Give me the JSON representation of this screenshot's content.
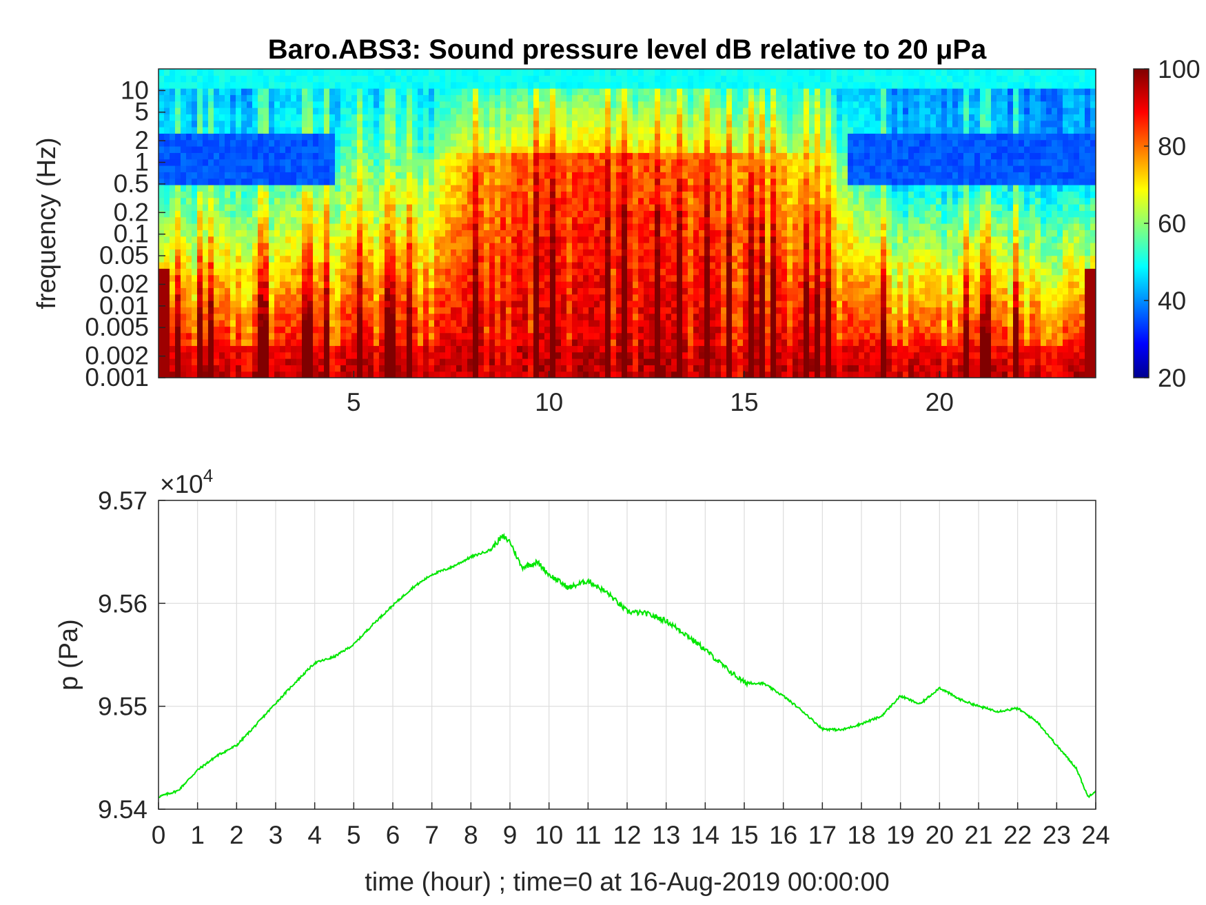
{
  "chart_data": [
    {
      "type": "heatmap",
      "title": "Baro.ABS3: Sound pressure level dB relative to 20 μPa",
      "ylabel": "frequency (Hz)",
      "yscale": "log",
      "xlim": [
        0,
        24
      ],
      "ylim": [
        0.001,
        20
      ],
      "xticks": [
        "5",
        "10",
        "15",
        "20"
      ],
      "yticks": [
        "0.001",
        "0.002",
        "0.005",
        "0.01",
        "0.02",
        "0.05",
        "0.1",
        "0.2",
        "0.5",
        "1",
        "2",
        "5",
        "10"
      ],
      "colorbar": {
        "min": 20,
        "max": 100,
        "ticks": [
          "20",
          "40",
          "60",
          "80",
          "100"
        ],
        "colormap": "jet"
      },
      "activity_profile": [
        {
          "x": 0,
          "level": 0.25
        },
        {
          "x": 1,
          "level": 0.3
        },
        {
          "x": 2,
          "level": 0.35
        },
        {
          "x": 3,
          "level": 0.35
        },
        {
          "x": 4,
          "level": 0.4
        },
        {
          "x": 5,
          "level": 0.5
        },
        {
          "x": 6,
          "level": 0.45
        },
        {
          "x": 7,
          "level": 0.55
        },
        {
          "x": 8,
          "level": 0.85
        },
        {
          "x": 9,
          "level": 0.95
        },
        {
          "x": 10,
          "level": 1.0
        },
        {
          "x": 11,
          "level": 1.0
        },
        {
          "x": 12,
          "level": 1.0
        },
        {
          "x": 13,
          "level": 0.95
        },
        {
          "x": 14,
          "level": 0.95
        },
        {
          "x": 15,
          "level": 0.9
        },
        {
          "x": 16,
          "level": 0.8
        },
        {
          "x": 17,
          "level": 0.7
        },
        {
          "x": 17.8,
          "level": 0.4
        },
        {
          "x": 19,
          "level": 0.2
        },
        {
          "x": 20,
          "level": 0.2
        },
        {
          "x": 21,
          "level": 0.22
        },
        {
          "x": 22,
          "level": 0.2
        },
        {
          "x": 23,
          "level": 0.2
        },
        {
          "x": 24,
          "level": 0.2
        }
      ]
    },
    {
      "type": "line",
      "ylabel": "p (Pa)",
      "xlabel": "time (hour) ; time=0 at 16-Aug-2019 00:00:00",
      "xlim": [
        0,
        24
      ],
      "ylim": [
        95400,
        95700
      ],
      "exponent_label": "×10",
      "exponent_power": "4",
      "xticks": [
        "0",
        "1",
        "2",
        "3",
        "4",
        "5",
        "6",
        "7",
        "8",
        "9",
        "10",
        "11",
        "12",
        "13",
        "14",
        "15",
        "16",
        "17",
        "18",
        "19",
        "20",
        "21",
        "22",
        "23",
        "24"
      ],
      "yticks": [
        "9.54",
        "9.55",
        "9.56",
        "9.57"
      ],
      "grid": true,
      "color": "#00e600",
      "x": [
        0,
        0.5,
        1,
        1.5,
        2,
        2.5,
        3,
        3.5,
        4,
        4.5,
        5,
        5.5,
        6,
        6.5,
        7,
        7.5,
        8,
        8.5,
        8.8,
        9,
        9.3,
        9.7,
        10,
        10.5,
        11,
        11.5,
        12,
        12.5,
        13,
        13.5,
        14,
        14.5,
        15,
        15.5,
        16,
        16.5,
        17,
        17.5,
        18,
        18.5,
        19,
        19.5,
        20,
        20.5,
        21,
        21.5,
        22,
        22.5,
        23,
        23.5,
        23.8,
        24
      ],
      "y": [
        95412,
        95418,
        95438,
        95452,
        95462,
        95482,
        95503,
        95523,
        95542,
        95548,
        95560,
        95580,
        95598,
        95615,
        95628,
        95635,
        95645,
        95652,
        95665,
        95660,
        95635,
        95640,
        95628,
        95615,
        95622,
        95610,
        95592,
        95590,
        95583,
        95570,
        95555,
        95538,
        95523,
        95522,
        95510,
        95495,
        95478,
        95477,
        95483,
        95490,
        95510,
        95502,
        95518,
        95507,
        95500,
        95495,
        95498,
        95485,
        95462,
        95440,
        95412,
        95418
      ]
    }
  ]
}
